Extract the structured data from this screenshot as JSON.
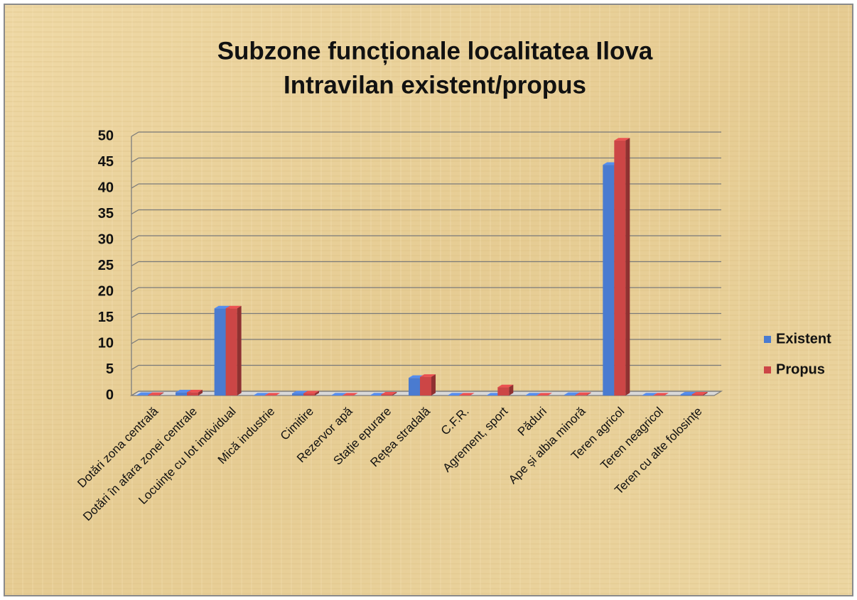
{
  "chart_data": {
    "type": "bar",
    "title": [
      "Subzone funcționale localitatea Ilova",
      "Intravilan existent/propus"
    ],
    "categories": [
      "Dotări zona centrală",
      "Dotări în afara zonei centrale",
      "Locuințe cu lot individual",
      "Mică industrie",
      "Cimitire",
      "Rezervor apă",
      "Stație epurare",
      "Rețea stradală",
      "C.F.R.",
      "Agrement, sport",
      "Păduri",
      "Ape și albia minoră",
      "Teren agricol",
      "Teren neagricol",
      "Teren cu alte folosințe"
    ],
    "series": [
      {
        "name": "Existent",
        "color": "#4a7bd0",
        "values": [
          0.1,
          0.6,
          16.8,
          0,
          0.4,
          0,
          0,
          3.4,
          0,
          0,
          0,
          0.1,
          44.5,
          0,
          0.2
        ]
      },
      {
        "name": "Propus",
        "color": "#cc4646",
        "values": [
          0.1,
          0.6,
          16.8,
          0,
          0.4,
          0,
          0.2,
          3.6,
          0,
          1.6,
          0,
          0.1,
          49.2,
          0,
          0.2
        ]
      }
    ],
    "ylim": [
      0,
      50
    ],
    "yticks": [
      0,
      5,
      10,
      15,
      20,
      25,
      30,
      35,
      40,
      45,
      50
    ],
    "grid": true,
    "legend": "right"
  }
}
